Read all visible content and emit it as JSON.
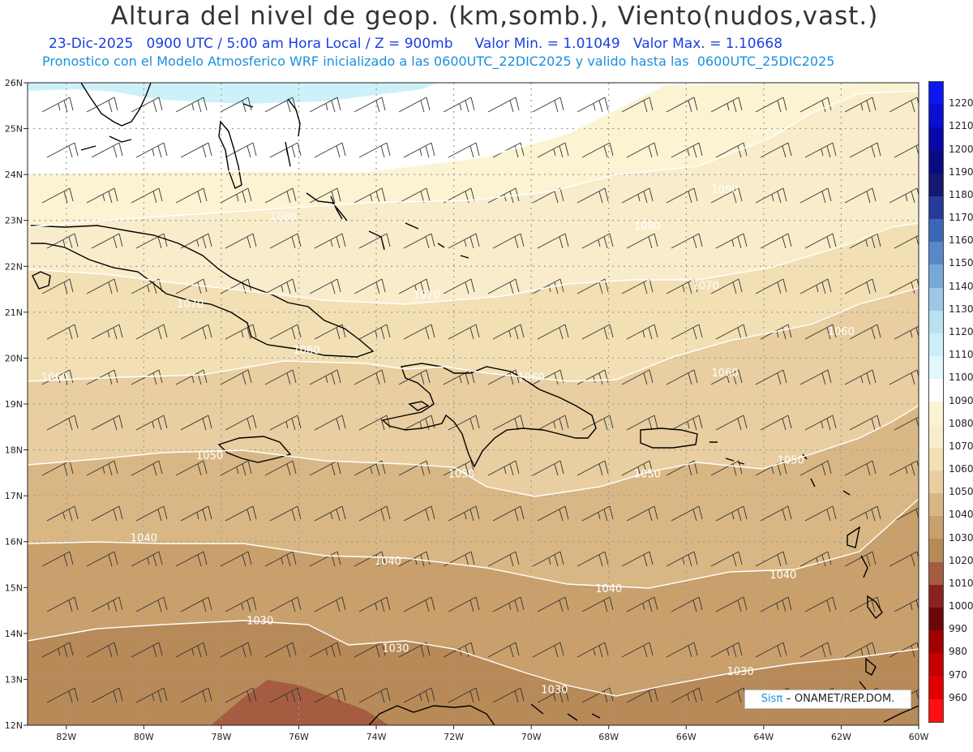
{
  "header": {
    "title": "Altura del nivel de geop. (km,somb.), Viento(nudos,vast.)",
    "line1": "23-Dic-2025   0900 UTC / 5:00 am Hora Local / Z = 900mb     Valor Min. = 1.01049   Valor Max. = 1.10668",
    "line2": "Pronostico con el Modelo Atmosferico WRF inicializado a las 0600UTC_22DIC2025 y valido hasta las  0600UTC_25DIC2025"
  },
  "credit": {
    "brand": "Sisπ",
    "org": " – ONAMET/REP.DOM."
  },
  "map": {
    "lon_range": [
      -83,
      -60
    ],
    "lat_range": [
      12,
      26
    ],
    "lon_ticks": [
      "82W",
      "80W",
      "78W",
      "76W",
      "74W",
      "72W",
      "70W",
      "68W",
      "66W",
      "64W",
      "62W",
      "60W"
    ],
    "lat_ticks": [
      "26N",
      "25N",
      "24N",
      "23N",
      "22N",
      "21N",
      "20N",
      "19N",
      "18N",
      "17N",
      "16N",
      "15N",
      "14N",
      "13N",
      "12N"
    ],
    "contour_labels": [
      {
        "text": "1090",
        "lon": -65.0,
        "lat": 23.6
      },
      {
        "text": "1080",
        "lon": -76.4,
        "lat": 23.0
      },
      {
        "text": "1080",
        "lon": -67.0,
        "lat": 22.8
      },
      {
        "text": "1070",
        "lon": -78.8,
        "lat": 21.1
      },
      {
        "text": "1070",
        "lon": -72.7,
        "lat": 21.3
      },
      {
        "text": "1070",
        "lon": -65.5,
        "lat": 21.5
      },
      {
        "text": "1060",
        "lon": -75.8,
        "lat": 20.1
      },
      {
        "text": "1060",
        "lon": -70.0,
        "lat": 19.5
      },
      {
        "text": "1060",
        "lon": -65.0,
        "lat": 19.6
      },
      {
        "text": "1060",
        "lon": -62.0,
        "lat": 20.5
      },
      {
        "text": "1060",
        "lon": -82.3,
        "lat": 19.5
      },
      {
        "text": "1050",
        "lon": -78.3,
        "lat": 17.8
      },
      {
        "text": "1050",
        "lon": -71.8,
        "lat": 17.4
      },
      {
        "text": "1050",
        "lon": -67.0,
        "lat": 17.4
      },
      {
        "text": "1050",
        "lon": -63.3,
        "lat": 17.7
      },
      {
        "text": "1040",
        "lon": -80.0,
        "lat": 16.0
      },
      {
        "text": "1040",
        "lon": -73.7,
        "lat": 15.5
      },
      {
        "text": "1040",
        "lon": -68.0,
        "lat": 14.9
      },
      {
        "text": "1040",
        "lon": -63.5,
        "lat": 15.2
      },
      {
        "text": "1030",
        "lon": -77.0,
        "lat": 14.2
      },
      {
        "text": "1030",
        "lon": -73.5,
        "lat": 13.6
      },
      {
        "text": "1030",
        "lon": -69.4,
        "lat": 12.7
      },
      {
        "text": "1030",
        "lon": -64.6,
        "lat": 13.1
      }
    ]
  },
  "colorbar": {
    "labels": [
      "1220",
      "1210",
      "1200",
      "1190",
      "1180",
      "1170",
      "1160",
      "1150",
      "1140",
      "1130",
      "1120",
      "1110",
      "1100",
      "1090",
      "1080",
      "1070",
      "1060",
      "1050",
      "1040",
      "1030",
      "1020",
      "1010",
      "1000",
      "990",
      "980",
      "970",
      "960"
    ],
    "colors": [
      "#0a17f0",
      "#0a0fd0",
      "#0a08a8",
      "#0a0a80",
      "#141870",
      "#283a98",
      "#3c66b8",
      "#5888c8",
      "#78a8d8",
      "#9cc8e6",
      "#b8e0f0",
      "#cdeef8",
      "#e0f8fc",
      "#ffffff",
      "#fbf3d2",
      "#f8eccb",
      "#f2e0b4",
      "#e8cea0",
      "#d9b784",
      "#c9a06c",
      "#b78a58",
      "#a65c40",
      "#8a2222",
      "#6a0808",
      "#a00000",
      "#c40000",
      "#e00000",
      "#ff1010"
    ]
  }
}
